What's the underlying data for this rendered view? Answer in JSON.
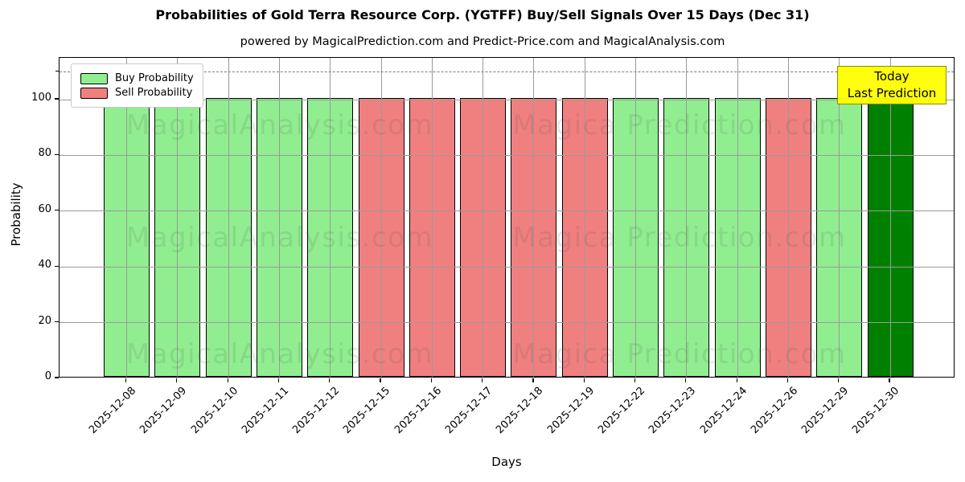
{
  "header": {
    "title": "Probabilities of Gold Terra Resource Corp. (YGTFF) Buy/Sell Signals Over 15 Days (Dec 31)",
    "subtitle": "powered by MagicalPrediction.com and Predict-Price.com and MagicalAnalysis.com"
  },
  "legend": {
    "items": [
      {
        "label": "Buy Probability",
        "color": "#90EE90"
      },
      {
        "label": "Sell Probability",
        "color": "#F08080"
      }
    ]
  },
  "annotation": {
    "line1": "Today",
    "line2": "Last Prediction",
    "bg": "#FFFF00"
  },
  "watermarks": {
    "left": "MagicalAnalysis.com",
    "right": "Magica Prediction.com"
  },
  "colors": {
    "buy": "#90EE90",
    "sell": "#F08080",
    "today": "#008000",
    "grid": "#9a9a9a",
    "dashed_line": "#7a7a7a",
    "bar_edge": "#000000"
  },
  "chart_data": {
    "type": "bar",
    "title": "Probabilities of Gold Terra Resource Corp. (YGTFF) Buy/Sell Signals Over 15 Days (Dec 31)",
    "xlabel": "Days",
    "ylabel": "Probability",
    "categories": [
      "2025-12-08",
      "2025-12-09",
      "2025-12-10",
      "2025-12-11",
      "2025-12-12",
      "2025-12-15",
      "2025-12-16",
      "2025-12-17",
      "2025-12-18",
      "2025-12-19",
      "2025-12-22",
      "2025-12-23",
      "2025-12-24",
      "2025-12-26",
      "2025-12-29",
      "2025-12-30"
    ],
    "bars": [
      {
        "date": "2025-12-08",
        "value": 100,
        "signal": "buy"
      },
      {
        "date": "2025-12-09",
        "value": 100,
        "signal": "buy"
      },
      {
        "date": "2025-12-10",
        "value": 100,
        "signal": "buy"
      },
      {
        "date": "2025-12-11",
        "value": 100,
        "signal": "buy"
      },
      {
        "date": "2025-12-12",
        "value": 100,
        "signal": "buy"
      },
      {
        "date": "2025-12-15",
        "value": 100,
        "signal": "sell"
      },
      {
        "date": "2025-12-16",
        "value": 100,
        "signal": "sell"
      },
      {
        "date": "2025-12-17",
        "value": 100,
        "signal": "sell"
      },
      {
        "date": "2025-12-18",
        "value": 100,
        "signal": "sell"
      },
      {
        "date": "2025-12-19",
        "value": 100,
        "signal": "sell"
      },
      {
        "date": "2025-12-22",
        "value": 100,
        "signal": "buy"
      },
      {
        "date": "2025-12-23",
        "value": 100,
        "signal": "buy"
      },
      {
        "date": "2025-12-24",
        "value": 100,
        "signal": "buy"
      },
      {
        "date": "2025-12-26",
        "value": 100,
        "signal": "sell"
      },
      {
        "date": "2025-12-29",
        "value": 100,
        "signal": "buy"
      },
      {
        "date": "2025-12-30",
        "value": 100,
        "signal": "today"
      }
    ],
    "series": [
      {
        "name": "Buy Probability",
        "values": [
          100,
          100,
          100,
          100,
          100,
          0,
          0,
          0,
          0,
          0,
          100,
          100,
          100,
          0,
          100,
          100
        ]
      },
      {
        "name": "Sell Probability",
        "values": [
          0,
          0,
          0,
          0,
          0,
          100,
          100,
          100,
          100,
          100,
          0,
          0,
          0,
          100,
          0,
          0
        ]
      }
    ],
    "yticks": [
      0,
      20,
      40,
      60,
      80,
      100
    ],
    "ylim": [
      0,
      115
    ],
    "dashed_line_y": 110,
    "grid": true,
    "legend_position": "upper left"
  }
}
